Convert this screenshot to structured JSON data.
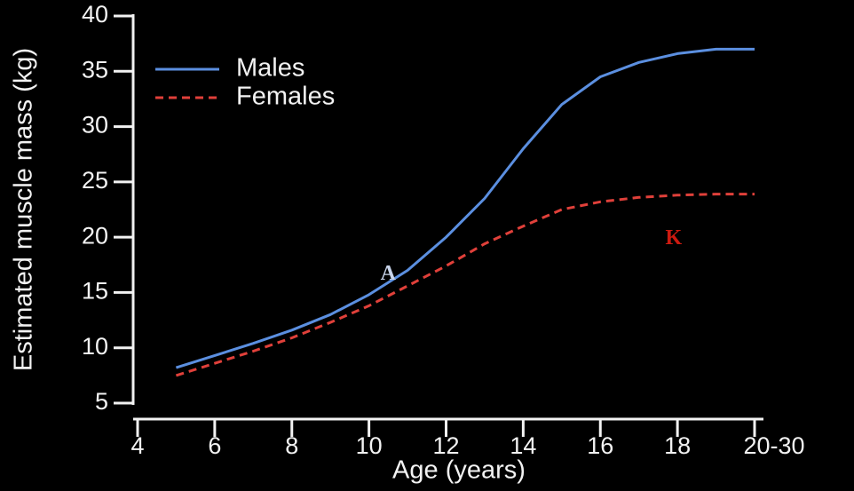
{
  "chart_data": {
    "type": "line",
    "x_label": "Age (years)",
    "y_label": "Estimated muscle mass (kg)",
    "x": [
      5,
      6,
      7,
      8,
      9,
      10,
      11,
      12,
      13,
      14,
      15,
      16,
      17,
      18,
      19,
      20
    ],
    "series": [
      {
        "name": "Males",
        "color": "#5b8fe0",
        "dash": "solid",
        "values": [
          8.2,
          9.3,
          10.4,
          11.6,
          13.0,
          14.8,
          17.0,
          20.0,
          23.5,
          28.0,
          32.0,
          34.5,
          35.8,
          36.6,
          37.0,
          37.0
        ]
      },
      {
        "name": "Females",
        "color": "#e0403a",
        "dash": "dashed",
        "values": [
          7.5,
          8.6,
          9.7,
          10.9,
          12.3,
          13.8,
          15.6,
          17.4,
          19.4,
          21.0,
          22.5,
          23.2,
          23.6,
          23.8,
          23.9,
          23.9
        ]
      }
    ],
    "xlim": [
      4,
      20
    ],
    "xticks": [
      4,
      6,
      8,
      10,
      12,
      14,
      16,
      18,
      {
        "value": 20,
        "label": "20-30"
      }
    ],
    "ylim": [
      5,
      40
    ],
    "yticks": [
      5,
      10,
      15,
      20,
      25,
      30,
      35,
      40
    ],
    "legend": "top-left",
    "annotations": [
      {
        "text": "A",
        "color": "#c8d4ea",
        "x": 10.5,
        "y": 16.6
      },
      {
        "text": "K",
        "color": "#cc1a10",
        "x": 17.9,
        "y": 19.8
      }
    ]
  }
}
